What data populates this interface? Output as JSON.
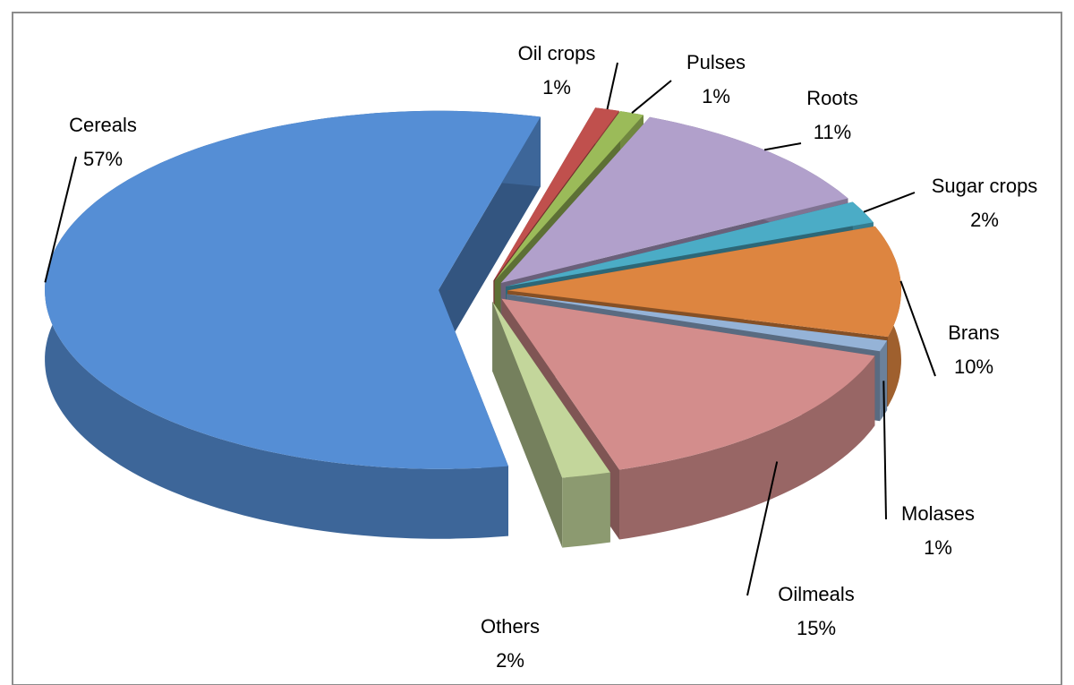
{
  "chart_data": {
    "type": "pie",
    "categories": [
      "Oil crops",
      "Pulses",
      "Roots",
      "Sugar crops",
      "Brans",
      "Molases",
      "Oilmeals",
      "Others",
      "Cereals"
    ],
    "values": [
      1,
      1,
      11,
      2,
      10,
      1,
      15,
      2,
      57
    ],
    "value_labels": [
      "1%",
      "1%",
      "11%",
      "2%",
      "10%",
      "1%",
      "15%",
      "2%",
      "57%"
    ],
    "colors": [
      "#c0504d",
      "#9bbb59",
      "#b1a0cb",
      "#4bacc6",
      "#dd8540",
      "#95b3d7",
      "#d38d8c",
      "#c3d69b",
      "#558ed5"
    ]
  }
}
